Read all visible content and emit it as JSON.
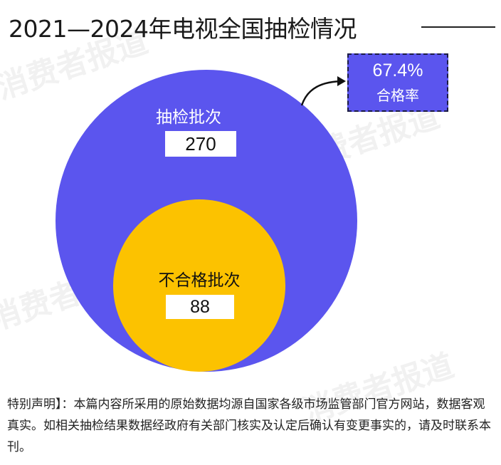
{
  "title": "2021—2024年电视全国抽检情况",
  "chart_data": {
    "type": "bubble",
    "title": "2021—2024年电视全国抽检情况",
    "series": [
      {
        "name": "抽检批次",
        "value": 270
      },
      {
        "name": "不合格批次",
        "value": 88
      }
    ],
    "annotation": {
      "value": "67.4%",
      "label": "合格率"
    }
  },
  "colors": {
    "total": "#5b55ee",
    "unqualified": "#fcc200",
    "text_dark": "#111111"
  },
  "watermark": "消费者报道",
  "footnote": "特别声明】：本篇内容所采用的原始数据均源自国家各级市场监管部门官方网站，数据客观真实。如相关抽检结果数据经政府有关部门核实及认定后确认有变更事实的，请及时联系本刊。"
}
